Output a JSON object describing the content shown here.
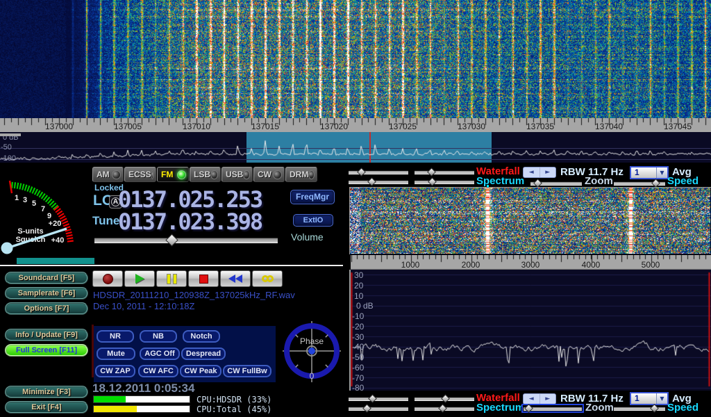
{
  "modes": {
    "items": [
      "AM",
      "ECSS",
      "FM",
      "LSB",
      "USB",
      "CW",
      "DRM"
    ],
    "active": "FM"
  },
  "frequency": {
    "locked": "Locked",
    "lo_label": "LO",
    "lo_auto_icon": "A",
    "lo_value": "0137.025.253",
    "tune_label": "Tune",
    "tune_value": "0137.023.398",
    "freqmgr": "FreqMgr",
    "extio": "ExtIO",
    "volume": "Volume"
  },
  "s_meter": {
    "ticks": [
      "1",
      "3",
      "5",
      "7",
      "9",
      "+20",
      "+40"
    ],
    "caption_units": "S-units",
    "caption_squelch": "Squelch"
  },
  "left_panel": {
    "buttons": [
      "Soundcard  [F5]",
      "Samplerate  [F6]",
      "Options   [F7]",
      "Info / Update  [F9]",
      "Full Screen  [F11]",
      "Minimize  [F3]",
      "Exit    [F4]"
    ]
  },
  "recording": {
    "filename": "HDSDR_20111210_120938Z_137025kHz_RF.wav",
    "timestamp": "Dec 10, 2011 - 12:10:18Z"
  },
  "dsp": {
    "buttons": [
      "NR",
      "NB",
      "Notch",
      "Mute",
      "AGC Off",
      "Despread",
      "CW ZAP",
      "CW AFC",
      "CW Peak",
      "CW FullBw"
    ]
  },
  "phase": {
    "label": "Phase",
    "value": "0"
  },
  "status": {
    "datetime": "18.12.2011 0:05:34",
    "cpu_hdsdr_label": "CPU:HDSDR (33%)",
    "cpu_total_label": "CPU:Total (45%)",
    "cpu_hdsdr_pct": 33,
    "cpu_total_pct": 45
  },
  "panel_controls": {
    "waterfall": "Waterfall",
    "spectrum": "Spectrum",
    "rbw": "RBW 11.7 Hz",
    "avg_value": "1",
    "avg": "Avg",
    "zoom": "Zoom",
    "speed": "Speed"
  },
  "main_scale": {
    "labels": [
      "137000",
      "137005",
      "137010",
      "137015",
      "137020",
      "137025",
      "137030",
      "137035",
      "137040",
      "137045"
    ]
  },
  "main_spectrum": {
    "db_labels": [
      "0 dB",
      "-50",
      "-100"
    ]
  },
  "right_scale": {
    "labels": [
      "1000",
      "2000",
      "3000",
      "4000",
      "5000"
    ]
  },
  "right_spectrum": {
    "db_labels": [
      "30",
      "20",
      "10",
      "0 dB",
      "-10",
      "-20",
      "-30",
      "-40",
      "-50",
      "-60",
      "-70",
      "-80"
    ]
  },
  "colors": {
    "accent_red": "#ff1a1a",
    "accent_cyan": "#19d9ff",
    "led_active": "#3fe334",
    "fullscreen_green": "#55ee22",
    "highlight_band": "#2d7fa3"
  }
}
